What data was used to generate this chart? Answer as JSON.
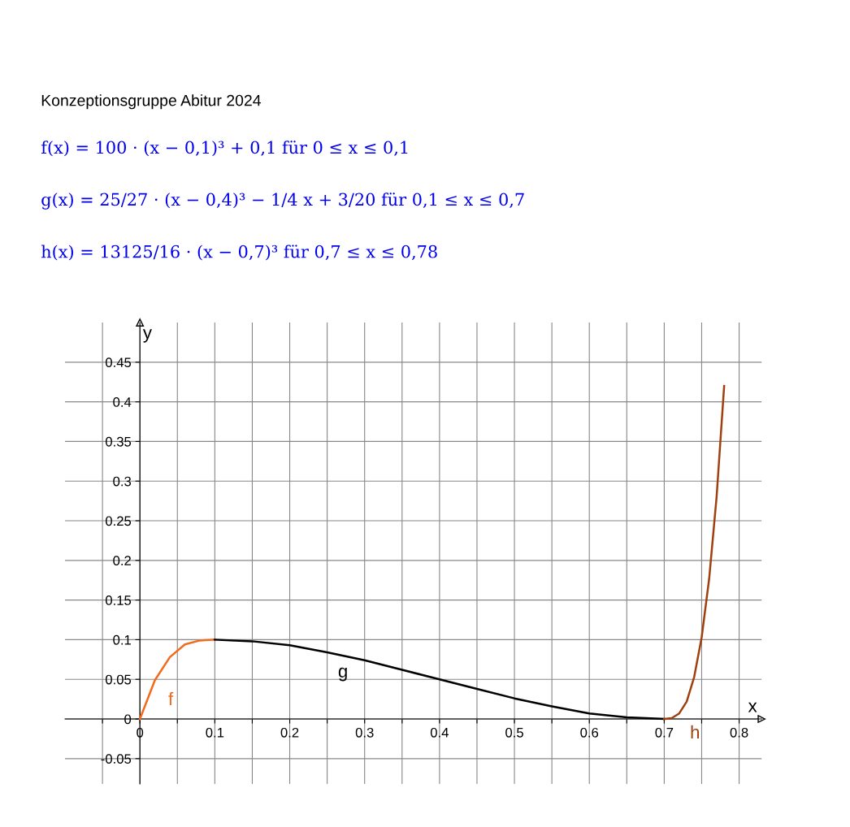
{
  "chart_data": {
    "type": "line",
    "title": "Konzeptionsgruppe Abitur 2024",
    "xlabel": "x",
    "ylabel": "y",
    "series": [
      {
        "name": "f",
        "color": "#f26a1b",
        "x": [
          0,
          0.02,
          0.04,
          0.06,
          0.08,
          0.1
        ],
        "values": [
          0,
          0.049,
          0.078,
          0.094,
          0.099,
          0.1
        ]
      },
      {
        "name": "g",
        "color": "#000000",
        "x": [
          0.1,
          0.15,
          0.2,
          0.25,
          0.3,
          0.35,
          0.4,
          0.45,
          0.5,
          0.55,
          0.6,
          0.65,
          0.7
        ],
        "values": [
          0.1,
          0.098,
          0.093,
          0.084,
          0.074,
          0.062,
          0.05,
          0.038,
          0.026,
          0.016,
          0.007,
          0.002,
          0
        ]
      },
      {
        "name": "h",
        "color": "#a0400f",
        "x": [
          0.7,
          0.71,
          0.72,
          0.73,
          0.74,
          0.75,
          0.76,
          0.77,
          0.78
        ],
        "values": [
          0,
          0.001,
          0.007,
          0.022,
          0.053,
          0.103,
          0.177,
          0.281,
          0.42
        ]
      }
    ],
    "annotations": [
      "f(x) = 100 · (x − 0,1)³ + 0,1 für 0 ≤ x ≤ 0,1",
      "g(x) = 25/27 · (x − 0,4)³ − 1/4 x + 3/20 für 0,1 ≤ x ≤ 0,7",
      "h(x) = 13125/16 · (x − 0,7)³ für 0,7 ≤ x ≤ 0,78"
    ],
    "xlim": [
      -0.1,
      0.83
    ],
    "ylim": [
      -0.082,
      0.5
    ],
    "xticks": [
      {
        "value": -0.05,
        "label": null
      },
      0,
      {
        "value": 0.05,
        "label": null
      },
      0.1,
      {
        "value": 0.15,
        "label": null
      },
      0.2,
      {
        "value": 0.25,
        "label": null
      },
      0.3,
      {
        "value": 0.35,
        "label": null
      },
      0.4,
      {
        "value": 0.45,
        "label": null
      },
      0.5,
      {
        "value": 0.55,
        "label": null
      },
      0.6,
      {
        "value": 0.65,
        "label": null
      },
      0.7,
      {
        "value": 0.75,
        "label": null
      },
      0.8
    ],
    "yticks": [
      -0.05,
      0,
      0.05,
      0.1,
      0.15,
      0.2,
      0.25,
      0.3,
      0.35,
      0.4,
      0.45
    ],
    "grid": true,
    "line_style": "solid",
    "marker": "none"
  }
}
